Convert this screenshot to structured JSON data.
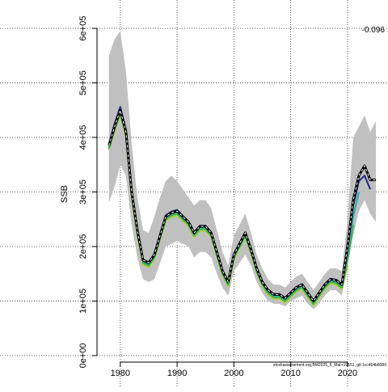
{
  "chart_data": {
    "type": "line",
    "y_label": "SSB",
    "annotation": "-0.096",
    "caption": "stockassessment.org,BM2025_6_Mat+19551, git:1cc464b8089",
    "x": [
      1978,
      1979,
      1980,
      1981,
      1982,
      1983,
      1984,
      1985,
      1986,
      1987,
      1988,
      1989,
      1990,
      1991,
      1992,
      1993,
      1994,
      1995,
      1996,
      1997,
      1998,
      1999,
      2000,
      2001,
      2002,
      2003,
      2004,
      2005,
      2006,
      2007,
      2008,
      2009,
      2010,
      2011,
      2012,
      2013,
      2014,
      2015,
      2016,
      2017,
      2018,
      2019,
      2020,
      2021,
      2022,
      2023,
      2024,
      2025
    ],
    "band": {
      "color": "#c0c0c0",
      "upper": [
        550000,
        580000,
        595000,
        520000,
        390000,
        290000,
        230000,
        225000,
        255000,
        290000,
        320000,
        330000,
        320000,
        305000,
        290000,
        275000,
        285000,
        285000,
        270000,
        230000,
        190000,
        165000,
        220000,
        240000,
        260000,
        225000,
        185000,
        160000,
        140000,
        130000,
        130000,
        125000,
        135000,
        145000,
        150000,
        135000,
        120000,
        135000,
        150000,
        160000,
        160000,
        155000,
        250000,
        400000,
        420000,
        440000,
        410000,
        430000
      ],
      "lower": [
        280000,
        310000,
        350000,
        330000,
        240000,
        180000,
        140000,
        135000,
        140000,
        170000,
        200000,
        205000,
        210000,
        205000,
        200000,
        180000,
        190000,
        190000,
        180000,
        150000,
        125000,
        110000,
        155000,
        170000,
        185000,
        165000,
        135000,
        115000,
        100000,
        95000,
        95000,
        90000,
        100000,
        105000,
        110000,
        95000,
        85000,
        95000,
        110000,
        120000,
        120000,
        110000,
        165000,
        220000,
        265000,
        285000,
        260000,
        245000
      ]
    },
    "series": [
      {
        "color": "#a8d23c",
        "values": [
          377000,
          412000,
          442000,
          402000,
          292000,
          222000,
          167000,
          162000,
          177000,
          212000,
          247000,
          254000,
          257000,
          247000,
          237000,
          217000,
          229000,
          229000,
          217000,
          182000,
          147000,
          127000,
          177000,
          197000,
          217000,
          187000,
          152000,
          127000,
          112000,
          104000,
          104000,
          97000,
          107000,
          117000,
          122000,
          107000,
          92000,
          107000,
          122000,
          132000,
          130000,
          122000,
          165000,
          null,
          null,
          null,
          null,
          null
        ]
      },
      {
        "color": "#3cb043",
        "values": [
          380000,
          415000,
          445000,
          405000,
          295000,
          225000,
          170000,
          165000,
          180000,
          215000,
          250000,
          257000,
          260000,
          250000,
          240000,
          220000,
          232000,
          232000,
          220000,
          185000,
          150000,
          130000,
          180000,
          200000,
          220000,
          190000,
          155000,
          130000,
          115000,
          107000,
          107000,
          100000,
          110000,
          120000,
          125000,
          110000,
          95000,
          110000,
          125000,
          135000,
          133000,
          125000,
          175000,
          240000,
          null,
          null,
          null,
          null
        ]
      },
      {
        "color": "#2ab3a6",
        "values": [
          383000,
          418000,
          448000,
          408000,
          298000,
          228000,
          173000,
          168000,
          183000,
          218000,
          253000,
          260000,
          263000,
          253000,
          243000,
          223000,
          235000,
          235000,
          223000,
          188000,
          153000,
          133000,
          183000,
          203000,
          223000,
          193000,
          158000,
          133000,
          118000,
          110000,
          110000,
          103000,
          113000,
          123000,
          128000,
          113000,
          98000,
          113000,
          128000,
          138000,
          136000,
          128000,
          185000,
          255000,
          300000,
          null,
          null,
          null
        ]
      },
      {
        "color": "#2b2f8a",
        "values": [
          388000,
          425000,
          456000,
          413000,
          302000,
          231000,
          176000,
          171000,
          186000,
          222000,
          257000,
          264000,
          267000,
          256000,
          246000,
          226000,
          238000,
          238000,
          226000,
          191000,
          156000,
          136000,
          186000,
          206000,
          226000,
          196000,
          161000,
          136000,
          121000,
          113000,
          113000,
          106000,
          116000,
          126000,
          131000,
          116000,
          101000,
          116000,
          131000,
          141000,
          139000,
          131000,
          195000,
          275000,
          320000,
          330000,
          305000,
          null
        ]
      },
      {
        "color": "#000000",
        "dashed": true,
        "values": [
          385000,
          420000,
          450000,
          410000,
          300000,
          230000,
          175000,
          170000,
          185000,
          220000,
          255000,
          262000,
          265000,
          255000,
          245000,
          225000,
          237000,
          237000,
          225000,
          190000,
          155000,
          135000,
          185000,
          205000,
          225000,
          195000,
          160000,
          135000,
          120000,
          112000,
          112000,
          105000,
          115000,
          125000,
          130000,
          115000,
          100000,
          115000,
          130000,
          140000,
          138000,
          130000,
          200000,
          285000,
          330000,
          348000,
          322000,
          322000
        ]
      }
    ],
    "xlim": [
      1975.9,
      2025.7
    ],
    "ylim": [
      -12000,
      615000
    ],
    "xticks": [
      1980,
      1990,
      2000,
      2010,
      2020
    ],
    "yticks": [
      {
        "value": 0,
        "label": "0e+00"
      },
      {
        "value": 100000,
        "label": "1e+05"
      },
      {
        "value": 200000,
        "label": "2e+05"
      },
      {
        "value": 300000,
        "label": "3e+05"
      },
      {
        "value": 400000,
        "label": "4e+05"
      },
      {
        "value": 500000,
        "label": "5e+05"
      },
      {
        "value": 600000,
        "label": "6e+05"
      }
    ],
    "grid": true
  }
}
